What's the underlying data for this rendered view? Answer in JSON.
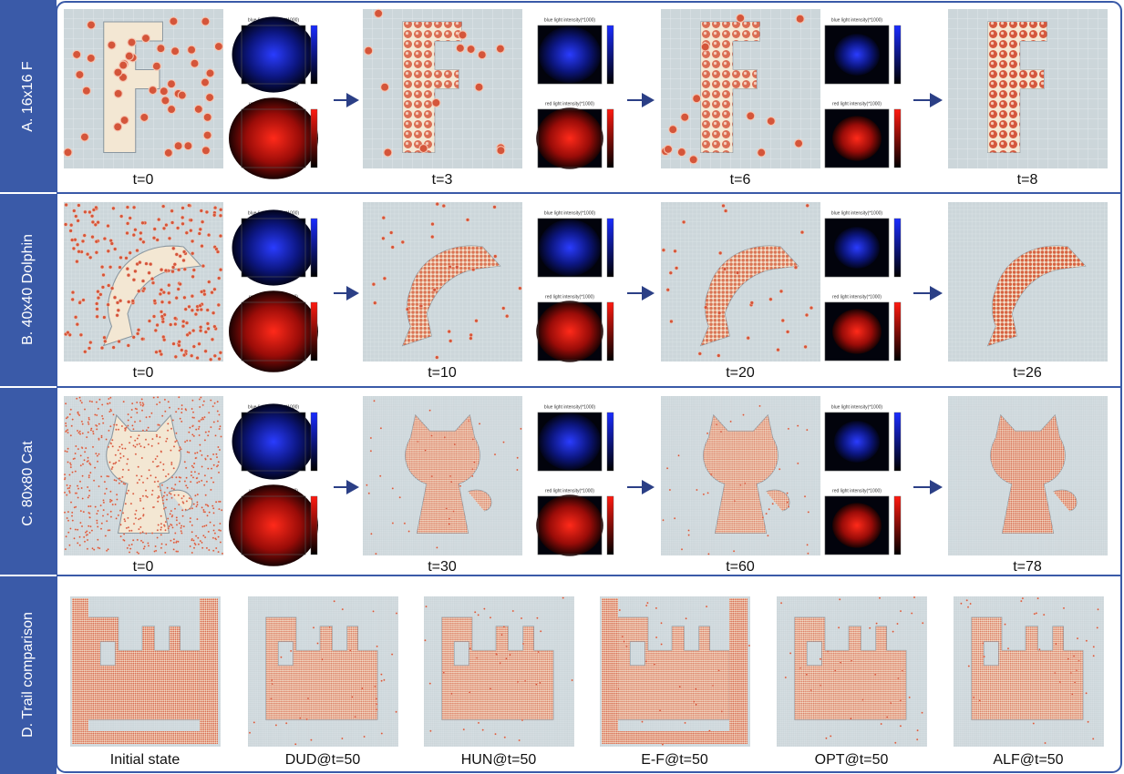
{
  "rows": [
    {
      "label": "A. 16x16 F",
      "frames": [
        "t=0",
        "t=3",
        "t=6",
        "t=8"
      ],
      "heatmaps": [
        {
          "blue_title": "blue light intensity(*1000)",
          "red_title": "red light intensity(*1000)"
        },
        {
          "blue_title": "blue light intensity(*1000)",
          "red_title": "red light intensity(*1000)"
        },
        {
          "blue_title": "blue light intensity(*1000)",
          "red_title": "red light intensity(*1000)"
        }
      ]
    },
    {
      "label": "B. 40x40 Dolphin",
      "frames": [
        "t=0",
        "t=10",
        "t=20",
        "t=26"
      ],
      "heatmaps": [
        {
          "blue_title": "blue light intensity(*1000)",
          "red_title": "red light intensity(*1000)"
        },
        {
          "blue_title": "blue light intensity(*1000)",
          "red_title": "red light intensity(*1000)"
        },
        {
          "blue_title": "blue light intensity(*1000)",
          "red_title": "red light intensity(*1000)"
        }
      ]
    },
    {
      "label": "C. 80x80 Cat",
      "frames": [
        "t=0",
        "t=30",
        "t=60",
        "t=78"
      ],
      "heatmaps": [
        {
          "blue_title": "blue light intensity(*1000)",
          "red_title": "red light intensity(*1000)"
        },
        {
          "blue_title": "blue light intensity(*1000)",
          "red_title": "red light intensity(*1000)"
        },
        {
          "blue_title": "blue light intensity(*1000)",
          "red_title": "red light intensity(*1000)"
        }
      ]
    }
  ],
  "comparison": {
    "label": "D. Trail comparison",
    "frames": [
      "Initial state",
      "DUD@t=50",
      "HUN@t=50",
      "E-F@t=50",
      "OPT@t=50",
      "ALF@t=50"
    ]
  }
}
